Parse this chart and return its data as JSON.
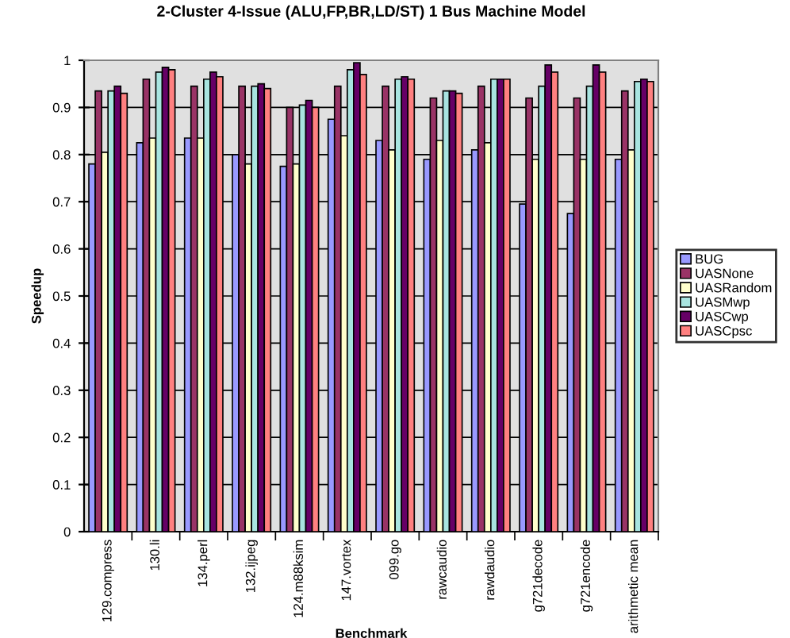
{
  "chart_data": {
    "type": "bar",
    "title": "2-Cluster 4-Issue (ALU,FP,BR,LD/ST) 1 Bus Machine Model",
    "xlabel": "Benchmark",
    "ylabel": "Speedup",
    "categories": [
      "129.compress",
      "130.li",
      "134.perl",
      "132.ijpeg",
      "124.m88ksim",
      "147.vortex",
      "099.go",
      "rawcaudio",
      "rawdaudio",
      "g721decode",
      "g721encode",
      "arithmetic mean"
    ],
    "series": [
      {
        "name": "BUG",
        "color": "#9999ff",
        "values": [
          0.78,
          0.825,
          0.835,
          0.8,
          0.775,
          0.875,
          0.83,
          0.79,
          0.81,
          0.695,
          0.675,
          0.79
        ]
      },
      {
        "name": "UASNone",
        "color": "#993366",
        "values": [
          0.935,
          0.96,
          0.945,
          0.945,
          0.9,
          0.945,
          0.945,
          0.92,
          0.945,
          0.92,
          0.92,
          0.935
        ]
      },
      {
        "name": "UASRandom",
        "color": "#ffffcc",
        "values": [
          0.805,
          0.835,
          0.835,
          0.78,
          0.78,
          0.84,
          0.81,
          0.83,
          0.825,
          0.79,
          0.79,
          0.81
        ]
      },
      {
        "name": "UASMwp",
        "color": "#a8e4e0",
        "values": [
          0.935,
          0.975,
          0.96,
          0.945,
          0.905,
          0.98,
          0.96,
          0.935,
          0.96,
          0.945,
          0.945,
          0.955
        ]
      },
      {
        "name": "UASCwp",
        "color": "#660066",
        "values": [
          0.945,
          0.985,
          0.975,
          0.95,
          0.915,
          0.995,
          0.965,
          0.935,
          0.96,
          0.99,
          0.99,
          0.96
        ]
      },
      {
        "name": "UASCpsc",
        "color": "#ff8080",
        "values": [
          0.93,
          0.98,
          0.965,
          0.94,
          0.9,
          0.97,
          0.96,
          0.93,
          0.96,
          0.975,
          0.975,
          0.955
        ]
      }
    ],
    "ylim": [
      0,
      1
    ],
    "yticks": [
      0,
      0.1,
      0.2,
      0.3,
      0.4,
      0.5,
      0.6,
      0.7,
      0.8,
      0.9,
      1
    ],
    "grid": "y",
    "legend": "right"
  }
}
